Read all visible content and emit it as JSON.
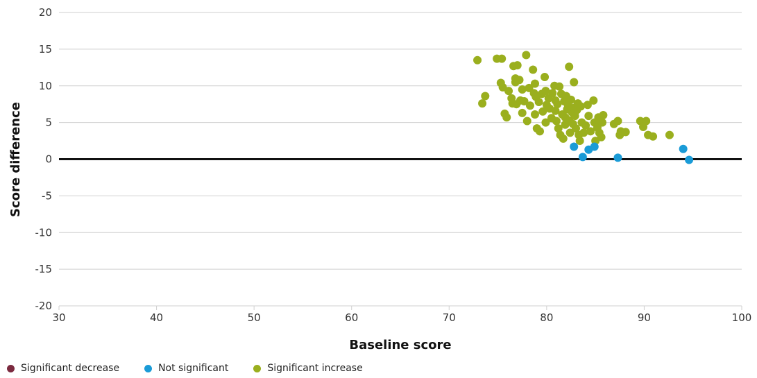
{
  "chart_data": {
    "type": "scatter",
    "xlabel": "Baseline score",
    "ylabel": "Score difference",
    "xlim": [
      30,
      100
    ],
    "ylim": [
      -20,
      20
    ],
    "xticks": [
      30,
      40,
      50,
      60,
      70,
      80,
      90,
      100
    ],
    "yticks": [
      -20,
      -15,
      -10,
      -5,
      0,
      5,
      10,
      15,
      20
    ],
    "grid": true,
    "reference_line_y": 0,
    "legend_position": "bottom-left",
    "series": [
      {
        "name": "Significant decrease",
        "color": "#7b2a3f",
        "points": []
      },
      {
        "name": "Not significant",
        "color": "#1a9bd7",
        "points": [
          [
            82.8,
            1.7
          ],
          [
            83.7,
            0.3
          ],
          [
            84.3,
            1.3
          ],
          [
            84.9,
            1.7
          ],
          [
            87.3,
            0.2
          ],
          [
            94.0,
            1.4
          ],
          [
            94.6,
            -0.1
          ]
        ]
      },
      {
        "name": "Significant increase",
        "color": "#9aaf1e",
        "points": [
          [
            72.9,
            13.5
          ],
          [
            73.4,
            7.6
          ],
          [
            73.7,
            8.6
          ],
          [
            74.9,
            13.7
          ],
          [
            75.4,
            13.7
          ],
          [
            75.3,
            10.4
          ],
          [
            75.5,
            9.8
          ],
          [
            75.7,
            6.2
          ],
          [
            75.9,
            5.7
          ],
          [
            76.1,
            9.3
          ],
          [
            76.4,
            8.3
          ],
          [
            76.5,
            7.6
          ],
          [
            76.6,
            12.7
          ],
          [
            76.8,
            11.0
          ],
          [
            76.8,
            10.5
          ],
          [
            77.0,
            12.8
          ],
          [
            77.2,
            10.8
          ],
          [
            76.9,
            7.5
          ],
          [
            77.3,
            8.0
          ],
          [
            77.5,
            9.5
          ],
          [
            77.5,
            6.3
          ],
          [
            77.7,
            7.9
          ],
          [
            77.9,
            14.2
          ],
          [
            78.0,
            5.2
          ],
          [
            78.2,
            9.7
          ],
          [
            78.3,
            7.3
          ],
          [
            78.6,
            12.2
          ],
          [
            78.7,
            9.0
          ],
          [
            78.8,
            10.3
          ],
          [
            78.8,
            6.1
          ],
          [
            78.9,
            8.5
          ],
          [
            79.0,
            4.2
          ],
          [
            79.2,
            7.8
          ],
          [
            79.3,
            3.8
          ],
          [
            79.5,
            8.9
          ],
          [
            79.6,
            6.5
          ],
          [
            79.8,
            11.2
          ],
          [
            79.9,
            9.3
          ],
          [
            80.0,
            7.4
          ],
          [
            79.9,
            5.0
          ],
          [
            80.2,
            8.3
          ],
          [
            80.3,
            6.9
          ],
          [
            80.5,
            5.6
          ],
          [
            80.6,
            9.0
          ],
          [
            80.8,
            10.0
          ],
          [
            80.9,
            8.0
          ],
          [
            80.9,
            6.6
          ],
          [
            81.0,
            5.2
          ],
          [
            81.1,
            7.5
          ],
          [
            81.2,
            4.2
          ],
          [
            81.3,
            9.9
          ],
          [
            81.4,
            3.3
          ],
          [
            81.5,
            8.9
          ],
          [
            81.6,
            6.1
          ],
          [
            81.7,
            2.8
          ],
          [
            81.8,
            7.9
          ],
          [
            81.9,
            5.7
          ],
          [
            81.9,
            4.7
          ],
          [
            82.0,
            8.6
          ],
          [
            82.1,
            6.8
          ],
          [
            82.2,
            7.3
          ],
          [
            82.3,
            12.6
          ],
          [
            82.3,
            5.3
          ],
          [
            82.4,
            3.6
          ],
          [
            82.5,
            8.1
          ],
          [
            82.6,
            6.4
          ],
          [
            82.7,
            4.8
          ],
          [
            82.8,
            10.5
          ],
          [
            82.8,
            7.0
          ],
          [
            82.9,
            5.9
          ],
          [
            83.0,
            4.2
          ],
          [
            83.1,
            6.7
          ],
          [
            83.2,
            7.6
          ],
          [
            83.3,
            3.3
          ],
          [
            83.4,
            2.5
          ],
          [
            83.5,
            7.2
          ],
          [
            83.6,
            5.0
          ],
          [
            83.8,
            3.6
          ],
          [
            84.0,
            4.6
          ],
          [
            84.2,
            7.4
          ],
          [
            84.3,
            5.9
          ],
          [
            84.5,
            3.8
          ],
          [
            84.8,
            8.0
          ],
          [
            84.9,
            5.0
          ],
          [
            85.0,
            2.5
          ],
          [
            85.2,
            4.3
          ],
          [
            85.3,
            5.7
          ],
          [
            85.4,
            3.6
          ],
          [
            85.6,
            3.0
          ],
          [
            85.7,
            5.0
          ],
          [
            85.8,
            6.0
          ],
          [
            86.9,
            4.8
          ],
          [
            87.3,
            5.2
          ],
          [
            87.5,
            3.3
          ],
          [
            87.6,
            3.8
          ],
          [
            88.1,
            3.7
          ],
          [
            89.6,
            5.2
          ],
          [
            89.9,
            4.4
          ],
          [
            90.2,
            5.2
          ],
          [
            90.4,
            3.3
          ],
          [
            90.9,
            3.1
          ],
          [
            92.6,
            3.3
          ]
        ]
      }
    ]
  }
}
